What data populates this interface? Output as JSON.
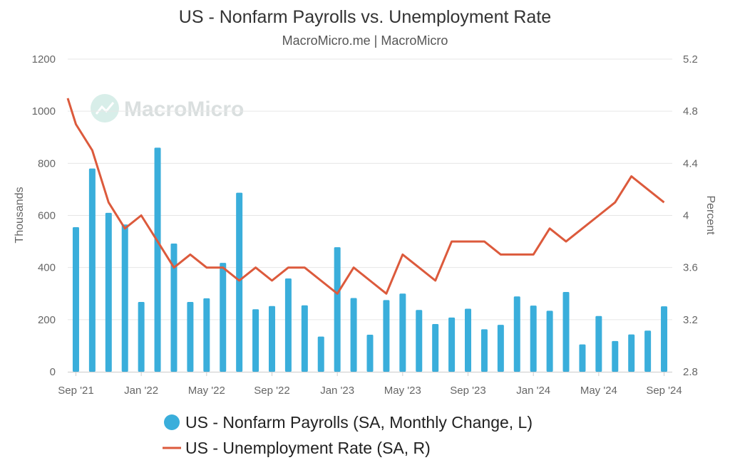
{
  "chart_data": {
    "type": "bar",
    "title": "US - Nonfarm Payrolls vs. Unemployment Rate",
    "subtitle": "MacroMicro.me | MacroMicro",
    "watermark": "MacroMicro",
    "ylabel_left": "Thousands",
    "ylabel_right": "Percent",
    "ylim_left": [
      0,
      1200
    ],
    "ylim_right": [
      2.8,
      5.2
    ],
    "yticks_left": [
      "0",
      "200",
      "400",
      "600",
      "800",
      "1000",
      "1200"
    ],
    "yticks_right": [
      "2.8",
      "3.2",
      "3.6",
      "4",
      "4.4",
      "4.8",
      "5.2"
    ],
    "x_tick_labels": [
      "Sep '21",
      "Jan '22",
      "May '22",
      "Sep '22",
      "Jan '23",
      "May '23",
      "Sep '23",
      "Jan '24",
      "May '24",
      "Sep '24"
    ],
    "x": [
      "Sep '21",
      "Oct '21",
      "Nov '21",
      "Dec '21",
      "Jan '22",
      "Feb '22",
      "Mar '22",
      "Apr '22",
      "May '22",
      "Jun '22",
      "Jul '22",
      "Aug '22",
      "Sep '22",
      "Oct '22",
      "Nov '22",
      "Dec '22",
      "Jan '23",
      "Feb '23",
      "Mar '23",
      "Apr '23",
      "May '23",
      "Jun '23",
      "Jul '23",
      "Aug '23",
      "Sep '23",
      "Oct '23",
      "Nov '23",
      "Dec '23",
      "Jan '24",
      "Feb '24",
      "Mar '24",
      "Apr '24",
      "May '24",
      "Jun '24",
      "Jul '24",
      "Aug '24",
      "Sep '24"
    ],
    "grid": true,
    "legend_position": "bottom-center",
    "series": [
      {
        "name": "US - Nonfarm Payrolls (SA, Monthly Change, L)",
        "type": "bar",
        "axis": "left",
        "color": "#3aaedb",
        "values": [
          555,
          780,
          610,
          565,
          268,
          860,
          492,
          268,
          282,
          418,
          687,
          240,
          252,
          358,
          255,
          135,
          478,
          283,
          142,
          275,
          300,
          237,
          183,
          208,
          242,
          163,
          180,
          289,
          254,
          234,
          306,
          105,
          214,
          118,
          143,
          158,
          251
        ]
      },
      {
        "name": "US - Unemployment Rate (SA, R)",
        "type": "line",
        "axis": "right",
        "color": "#dc5a3c",
        "x": [
          "Aug '21",
          "Sep '21",
          "Oct '21",
          "Nov '21",
          "Dec '21",
          "Jan '22",
          "Feb '22",
          "Mar '22",
          "Apr '22",
          "May '22",
          "Jun '22",
          "Jul '22",
          "Aug '22",
          "Sep '22",
          "Oct '22",
          "Nov '22",
          "Dec '22",
          "Jan '23",
          "Feb '23",
          "Mar '23",
          "Apr '23",
          "May '23",
          "Jun '23",
          "Jul '23",
          "Aug '23",
          "Sep '23",
          "Oct '23",
          "Nov '23",
          "Dec '23",
          "Jan '24",
          "Feb '24",
          "Mar '24",
          "Apr '24",
          "May '24",
          "Jun '24",
          "Jul '24",
          "Aug '24",
          "Sep '24"
        ],
        "values": [
          4.9,
          4.7,
          4.5,
          4.1,
          3.9,
          4.0,
          3.8,
          3.6,
          3.7,
          3.6,
          3.6,
          3.5,
          3.6,
          3.5,
          3.6,
          3.6,
          3.5,
          3.4,
          3.6,
          3.5,
          3.4,
          3.7,
          3.6,
          3.5,
          3.8,
          3.8,
          3.8,
          3.7,
          3.7,
          3.7,
          3.9,
          3.8,
          3.9,
          4.0,
          4.1,
          4.3,
          4.2,
          4.1
        ]
      }
    ]
  }
}
